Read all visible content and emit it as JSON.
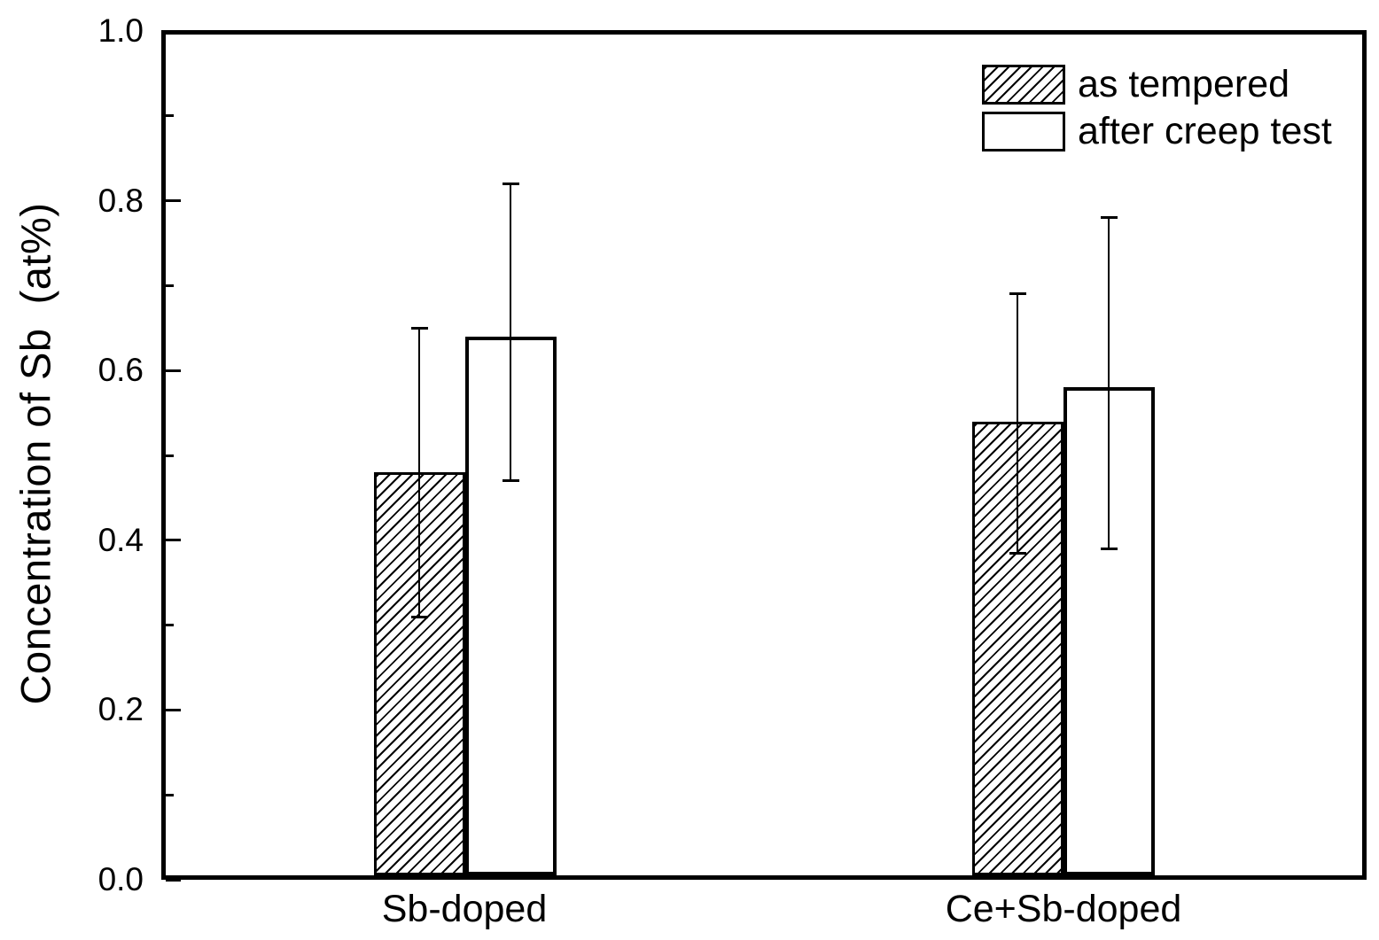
{
  "figure": {
    "background": "#ffffff"
  },
  "chart_data": {
    "type": "bar",
    "title": "",
    "categories": [
      "Sb-doped",
      "Ce+Sb-doped"
    ],
    "series": [
      {
        "name": "as tempered",
        "style": "hatched",
        "values": [
          0.48,
          0.54
        ],
        "error_low": [
          0.31,
          0.385
        ],
        "error_high": [
          0.65,
          0.69
        ]
      },
      {
        "name": "after creep test",
        "style": "open",
        "values": [
          0.64,
          0.58
        ],
        "error_low": [
          0.47,
          0.39
        ],
        "error_high": [
          0.82,
          0.78
        ]
      }
    ],
    "xlabel": "",
    "ylabel": "Concentration of Sb  (at%)",
    "ylim": [
      0.0,
      1.0
    ],
    "ytick_major": [
      0.0,
      0.2,
      0.4,
      0.6,
      0.8,
      1.0
    ],
    "ytick_labels": [
      "0.0",
      "0.2",
      "0.4",
      "0.6",
      "0.8",
      "1.0"
    ],
    "ytick_minor": [
      0.1,
      0.3,
      0.5,
      0.7,
      0.9
    ],
    "grid": false,
    "legend_position": "top-right",
    "bar_group_centers_frac": [
      0.25,
      0.75
    ],
    "colors": {
      "foreground": "#000000",
      "background": "#ffffff",
      "bar_open_fill": "#ffffff",
      "bar_edge": "#000000"
    }
  }
}
